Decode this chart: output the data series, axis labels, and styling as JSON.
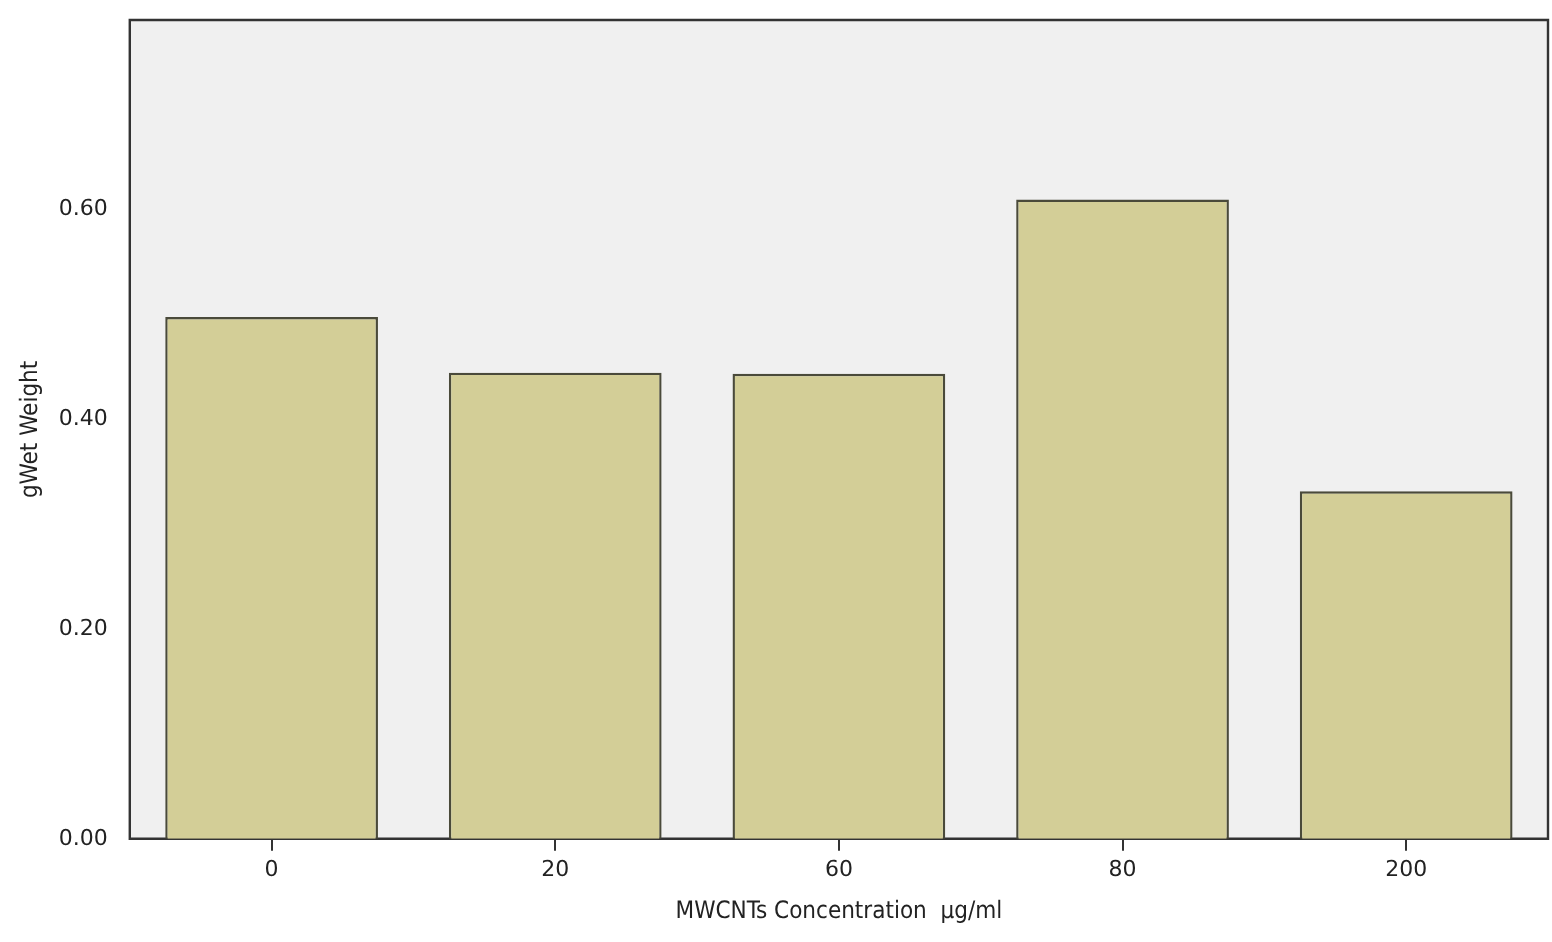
{
  "chart_data": {
    "type": "bar",
    "xlabel": "MWCNTs Concentration  μg/ml",
    "ylabel": "gWet Weight",
    "categories": [
      "0",
      "20",
      "60",
      "80",
      "200"
    ],
    "values": [
      0.497,
      0.444,
      0.443,
      0.609,
      0.331
    ],
    "color": "#d3ce97",
    "ylim": [
      0,
      0.78
    ],
    "yticks": [
      {
        "value": 0,
        "label": "0.00"
      },
      {
        "value": 0.2,
        "label": "0.20"
      },
      {
        "value": 0.4,
        "label": "0.40"
      },
      {
        "value": 0.6,
        "label": "0.60"
      }
    ],
    "grid": false,
    "legend": false
  }
}
